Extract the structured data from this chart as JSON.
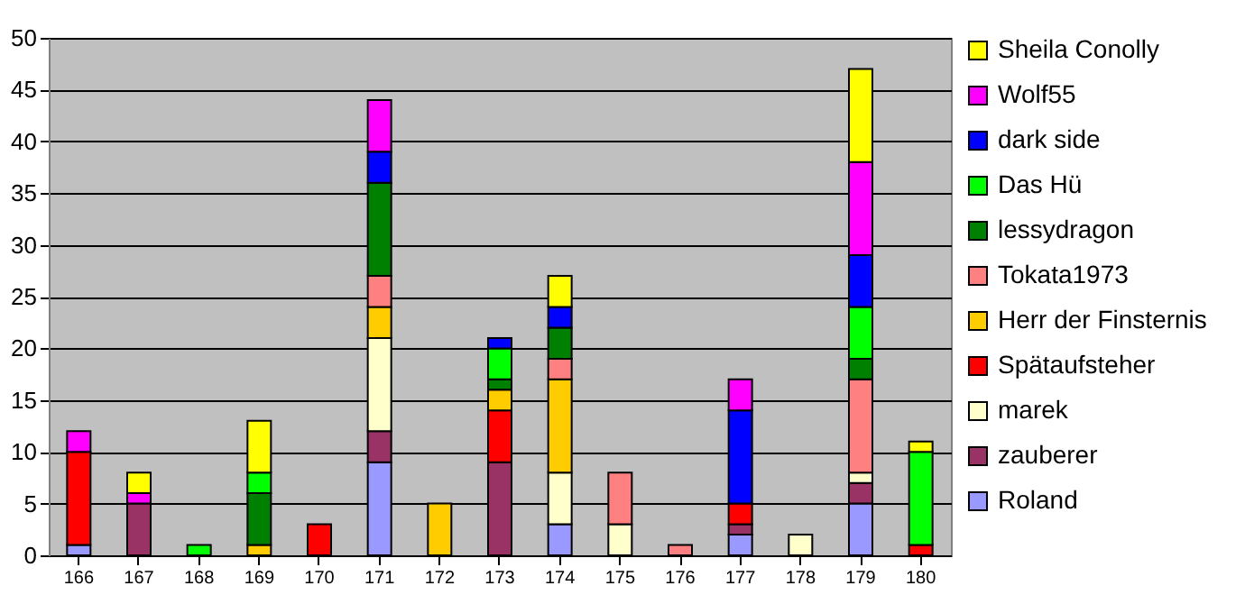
{
  "chart_data": {
    "type": "bar",
    "stacked": true,
    "categories": [
      "166",
      "167",
      "168",
      "169",
      "170",
      "171",
      "172",
      "173",
      "174",
      "175",
      "176",
      "177",
      "178",
      "179",
      "180"
    ],
    "ylim": [
      0,
      50
    ],
    "yticks": [
      0,
      5,
      10,
      15,
      20,
      25,
      30,
      35,
      40,
      45,
      50
    ],
    "grid": "y",
    "legend": "right",
    "series": [
      {
        "name": "Roland",
        "color": "#9999ff",
        "values": [
          1,
          null,
          null,
          null,
          null,
          9,
          null,
          null,
          3,
          null,
          null,
          2,
          null,
          5,
          null
        ]
      },
      {
        "name": "zauberer",
        "color": "#993366",
        "values": [
          null,
          5,
          null,
          null,
          null,
          3,
          null,
          9,
          null,
          null,
          null,
          1,
          null,
          2,
          null
        ]
      },
      {
        "name": "marek",
        "color": "#ffffcc",
        "values": [
          null,
          null,
          null,
          null,
          null,
          9,
          null,
          null,
          5,
          3,
          null,
          null,
          2,
          1,
          null
        ]
      },
      {
        "name": "Spätaufsteher",
        "color": "#ff0000",
        "values": [
          9,
          null,
          null,
          null,
          3,
          null,
          null,
          5,
          null,
          null,
          null,
          2,
          null,
          null,
          1
        ]
      },
      {
        "name": "Herr der Finsternis",
        "color": "#ffcc00",
        "values": [
          null,
          null,
          null,
          1,
          null,
          3,
          5,
          2,
          9,
          null,
          null,
          null,
          null,
          null,
          null
        ]
      },
      {
        "name": "Tokata1973",
        "color": "#ff8080",
        "values": [
          null,
          null,
          null,
          null,
          null,
          3,
          null,
          null,
          2,
          5,
          1,
          null,
          null,
          9,
          null
        ]
      },
      {
        "name": "lessydragon",
        "color": "#008000",
        "values": [
          null,
          null,
          null,
          5,
          null,
          9,
          null,
          1,
          3,
          null,
          null,
          null,
          null,
          2,
          null
        ]
      },
      {
        "name": "Das Hü",
        "color": "#00ff00",
        "values": [
          null,
          null,
          1,
          2,
          null,
          null,
          null,
          3,
          null,
          null,
          null,
          null,
          null,
          5,
          9
        ]
      },
      {
        "name": "dark side",
        "color": "#0000ff",
        "values": [
          null,
          null,
          null,
          null,
          null,
          3,
          null,
          1,
          2,
          null,
          null,
          9,
          null,
          5,
          null
        ]
      },
      {
        "name": "Wolf55",
        "color": "#ff00ff",
        "values": [
          2,
          1,
          null,
          null,
          null,
          5,
          null,
          null,
          null,
          null,
          null,
          3,
          null,
          9,
          null
        ]
      },
      {
        "name": "Sheila Conolly",
        "color": "#ffff00",
        "values": [
          null,
          2,
          null,
          5,
          null,
          null,
          null,
          null,
          3,
          null,
          null,
          null,
          null,
          9,
          1
        ]
      }
    ]
  }
}
